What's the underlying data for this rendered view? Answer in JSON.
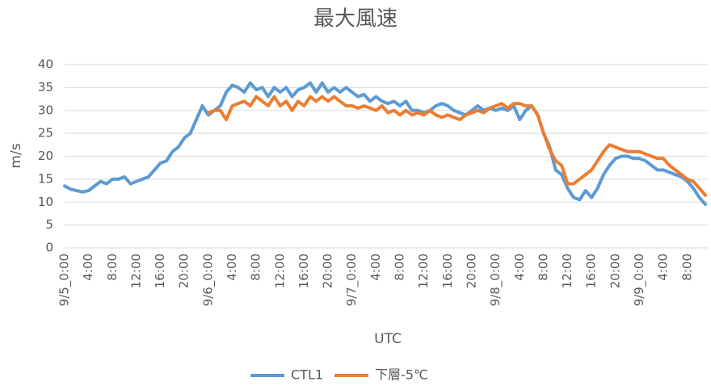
{
  "chart_data": {
    "type": "line",
    "title": "最大風速",
    "xlabel": "UTC",
    "ylabel": "m/s",
    "categories": [
      "9/5_0:00",
      null,
      null,
      null,
      "4:00",
      null,
      null,
      null,
      "8:00",
      null,
      null,
      null,
      "12:00",
      null,
      null,
      null,
      "16:00",
      null,
      null,
      null,
      "20:00",
      null,
      null,
      null,
      "9/6_0:00",
      null,
      null,
      null,
      "4:00",
      null,
      null,
      null,
      "8:00",
      null,
      null,
      null,
      "12:00",
      null,
      null,
      null,
      "16:00",
      null,
      null,
      null,
      "20:00",
      null,
      null,
      null,
      "9/7_0:00",
      null,
      null,
      null,
      "4:00",
      null,
      null,
      null,
      "8:00",
      null,
      null,
      null,
      "12:00",
      null,
      null,
      null,
      "16:00",
      null,
      null,
      null,
      "20:00",
      null,
      null,
      null,
      "9/8_0:00",
      null,
      null,
      null,
      "4:00",
      null,
      null,
      null,
      "8:00",
      null,
      null,
      null,
      "12:00",
      null,
      null,
      null,
      "16:00",
      null,
      null,
      null,
      "20:00",
      null,
      null,
      null,
      "9/9_0:00",
      null,
      null,
      null,
      "4:00",
      null,
      null,
      null,
      "8:00",
      null,
      null,
      null
    ],
    "series": [
      {
        "name": "CTL1",
        "color": "#5b9bd5",
        "values": [
          13.5,
          12.8,
          12.5,
          12.2,
          12.5,
          13.5,
          14.5,
          14,
          15,
          15,
          15.5,
          14,
          14.5,
          15,
          15.5,
          17,
          18.5,
          19,
          21,
          22,
          24,
          25,
          28,
          31,
          29,
          30,
          31,
          34,
          35.5,
          35,
          34,
          36,
          34.5,
          35,
          33,
          35,
          34,
          35,
          33,
          34.5,
          35,
          36,
          34,
          36,
          34,
          35,
          34,
          35,
          34,
          33,
          33.5,
          32,
          33,
          32,
          31.5,
          32,
          31,
          32,
          30,
          30,
          29.5,
          30,
          31,
          31.5,
          31,
          30,
          29.5,
          29,
          30,
          31,
          30,
          30.5,
          30,
          30.5,
          30,
          31,
          28,
          30,
          31,
          29,
          25,
          22,
          17,
          16,
          13,
          11,
          10.5,
          12.5,
          11,
          13,
          16,
          18,
          19.5,
          20,
          20,
          19.5,
          19.5,
          19,
          18,
          17,
          17,
          16.5,
          16,
          15.5,
          14.5,
          13,
          11,
          9.5
        ]
      },
      {
        "name": "下層-5℃",
        "color": "#ed7d31",
        "values": [
          null,
          null,
          null,
          null,
          null,
          null,
          null,
          null,
          null,
          null,
          null,
          null,
          null,
          null,
          null,
          null,
          null,
          null,
          null,
          null,
          null,
          null,
          null,
          null,
          29.5,
          30,
          30,
          28,
          31,
          31.5,
          32,
          31,
          33,
          32,
          31,
          33,
          31,
          32,
          30,
          32,
          31,
          33,
          32,
          33,
          32,
          33,
          32,
          31,
          31,
          30.5,
          31,
          30.5,
          30,
          31,
          29.5,
          30,
          29,
          30,
          29,
          29.5,
          29,
          30,
          29,
          28.5,
          29,
          28.5,
          28,
          29,
          29.5,
          30,
          29.5,
          30.5,
          31,
          31.5,
          30.5,
          31.5,
          31.5,
          31,
          31,
          29,
          25,
          21.5,
          19,
          18,
          14,
          14,
          15,
          16,
          17,
          19,
          21,
          22.5,
          22,
          21.5,
          21,
          21,
          21,
          20.5,
          20,
          19.5,
          19.5,
          18,
          17,
          16,
          15,
          14.5,
          13,
          11.5
        ]
      }
    ],
    "ylim": [
      0,
      40
    ],
    "yticks": [
      0,
      5,
      10,
      15,
      20,
      25,
      30,
      35,
      40
    ],
    "grid": true,
    "legend": "bottom"
  }
}
